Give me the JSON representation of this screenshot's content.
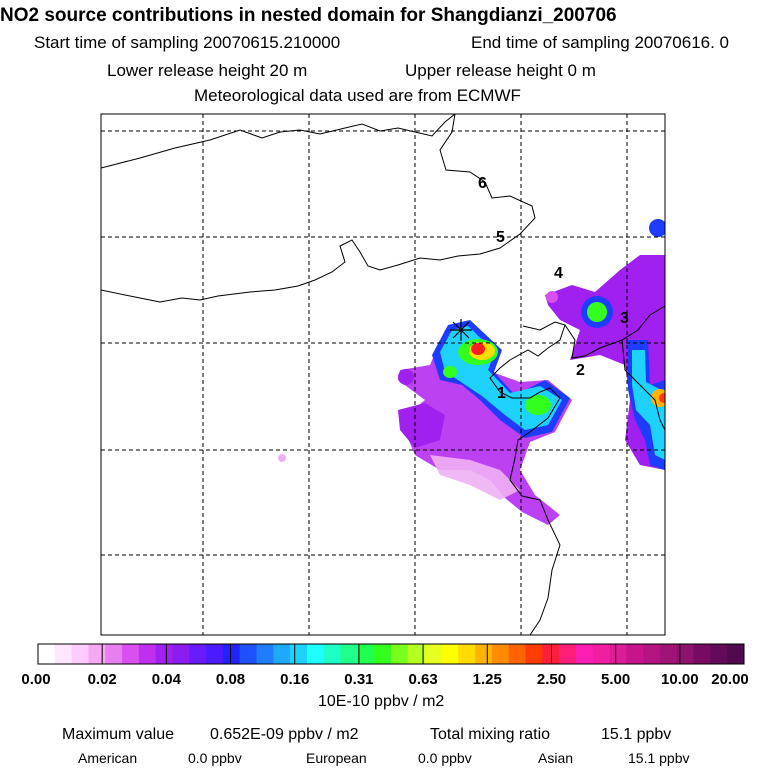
{
  "header": {
    "title": "NO2 source contributions in nested domain for Shangdianzi_200706",
    "start_label": "Start time of sampling 20070615.210000",
    "end_label": "End time of sampling 20070616.     0",
    "lower_label": "Lower release height   20 m",
    "upper_label": "Upper release height    0 m",
    "met_label": "Meteorological data used are from ECMWF"
  },
  "map": {
    "day_labels": [
      "1",
      "2",
      "3",
      "4",
      "5",
      "6"
    ],
    "receptor_marker": "asterisk-star"
  },
  "colorbar": {
    "tick_labels": [
      "0.00",
      "0.02",
      "0.04",
      "0.08",
      "0.16",
      "0.31",
      "0.63",
      "1.25",
      "2.50",
      "5.00",
      "10.00",
      "20.00"
    ],
    "unit": "10E-10 ppbv / m2",
    "colors": [
      "#ffffff",
      "#ffe6ff",
      "#ffccff",
      "#f5a9f5",
      "#e87ff0",
      "#d94ff0",
      "#c02ff0",
      "#a020f0",
      "#8a1cf0",
      "#6a1aff",
      "#4b1aff",
      "#2222ff",
      "#1e50ff",
      "#1e7cff",
      "#1ea8ff",
      "#1ed2ff",
      "#1effff",
      "#1effc8",
      "#1eff8c",
      "#1eff50",
      "#32ff1e",
      "#78ff1e",
      "#b4ff1e",
      "#e6ff1e",
      "#ffff00",
      "#ffdc00",
      "#ffb400",
      "#ff8c00",
      "#ff6400",
      "#ff3c00",
      "#ff1e3c",
      "#ff1e78",
      "#ff1eb4",
      "#f01ea0",
      "#dc1e96",
      "#c8148c",
      "#b41482",
      "#a01478",
      "#8c146e",
      "#780a64",
      "#640a5a",
      "#500a50"
    ]
  },
  "stats": {
    "max_label": "Maximum value",
    "max_value": "0.652E-09 ppbv / m2",
    "total_label": "Total mixing ratio",
    "total_value": "15.1 ppbv",
    "american_label": "American",
    "american_value": "0.0 ppbv",
    "european_label": "European",
    "european_value": "0.0 ppbv",
    "asian_label": "Asian",
    "asian_value": "15.1 ppbv"
  }
}
